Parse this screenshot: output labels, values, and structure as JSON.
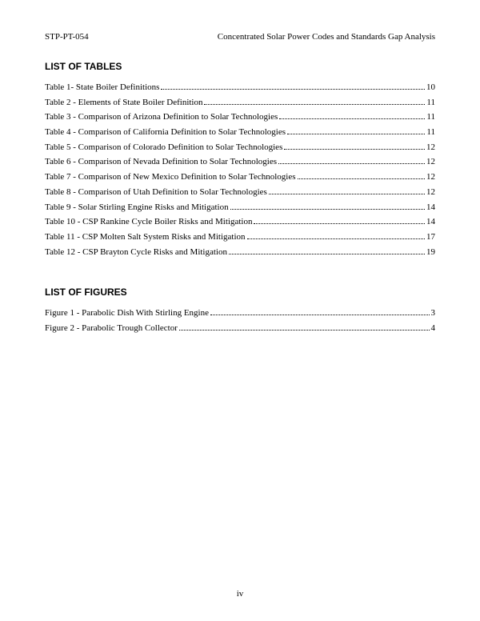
{
  "header": {
    "doc_id": "STP-PT-054",
    "doc_title": "Concentrated Solar Power Codes and Standards Gap Analysis"
  },
  "tables_section": {
    "heading": "LIST OF TABLES",
    "entries": [
      {
        "title": "Table 1- State Boiler Definitions",
        "page": "10"
      },
      {
        "title": "Table 2 - Elements of State Boiler Definition",
        "page": "11"
      },
      {
        "title": "Table 3 - Comparison of Arizona Definition to Solar Technologies",
        "page": "11"
      },
      {
        "title": "Table 4 - Comparison of California Definition to Solar Technologies",
        "page": "11"
      },
      {
        "title": "Table 5 - Comparison of Colorado Definition to Solar Technologies",
        "page": "12"
      },
      {
        "title": "Table 6 - Comparison of Nevada Definition to Solar Technologies",
        "page": "12"
      },
      {
        "title": "Table 7 - Comparison of New Mexico Definition to Solar Technologies",
        "page": "12"
      },
      {
        "title": "Table 8 - Comparison of Utah Definition to Solar Technologies",
        "page": "12"
      },
      {
        "title": "Table 9 - Solar Stirling Engine Risks and Mitigation",
        "page": "14"
      },
      {
        "title": "Table 10 - CSP Rankine Cycle Boiler Risks and Mitigation",
        "page": "14"
      },
      {
        "title": "Table 11 - CSP Molten Salt System Risks and Mitigation",
        "page": "17"
      },
      {
        "title": "Table 12 - CSP Brayton Cycle Risks and Mitigation",
        "page": "19"
      }
    ]
  },
  "figures_section": {
    "heading": "LIST OF FIGURES",
    "entries": [
      {
        "title": "Figure 1 - Parabolic Dish With Stirling Engine",
        "page": "3"
      },
      {
        "title": "Figure 2 - Parabolic Trough Collector",
        "page": "4"
      }
    ]
  },
  "footer": {
    "page_number": "iv"
  }
}
